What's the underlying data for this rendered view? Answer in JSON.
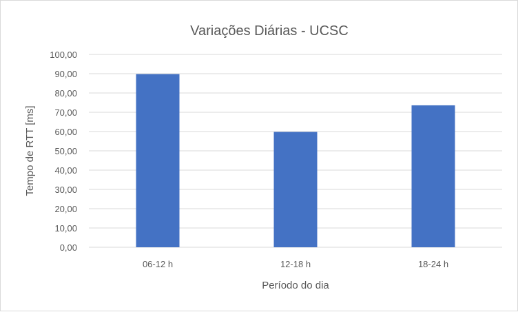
{
  "chart_data": {
    "type": "bar",
    "title": "Variações Diárias - UCSC",
    "xlabel": "Período do dia",
    "ylabel": "Tempo de RTT [ms]",
    "categories": [
      "06-12 h",
      "12-18 h",
      "18-24 h"
    ],
    "values": [
      89.8,
      59.8,
      73.6
    ],
    "ylim": [
      0,
      100
    ],
    "yticks": [
      "0,00",
      "10,00",
      "20,00",
      "30,00",
      "40,00",
      "50,00",
      "60,00",
      "70,00",
      "80,00",
      "90,00",
      "100,00"
    ],
    "grid": true,
    "bar_color": "#4472c4",
    "grid_color": "#d9d9d9"
  }
}
